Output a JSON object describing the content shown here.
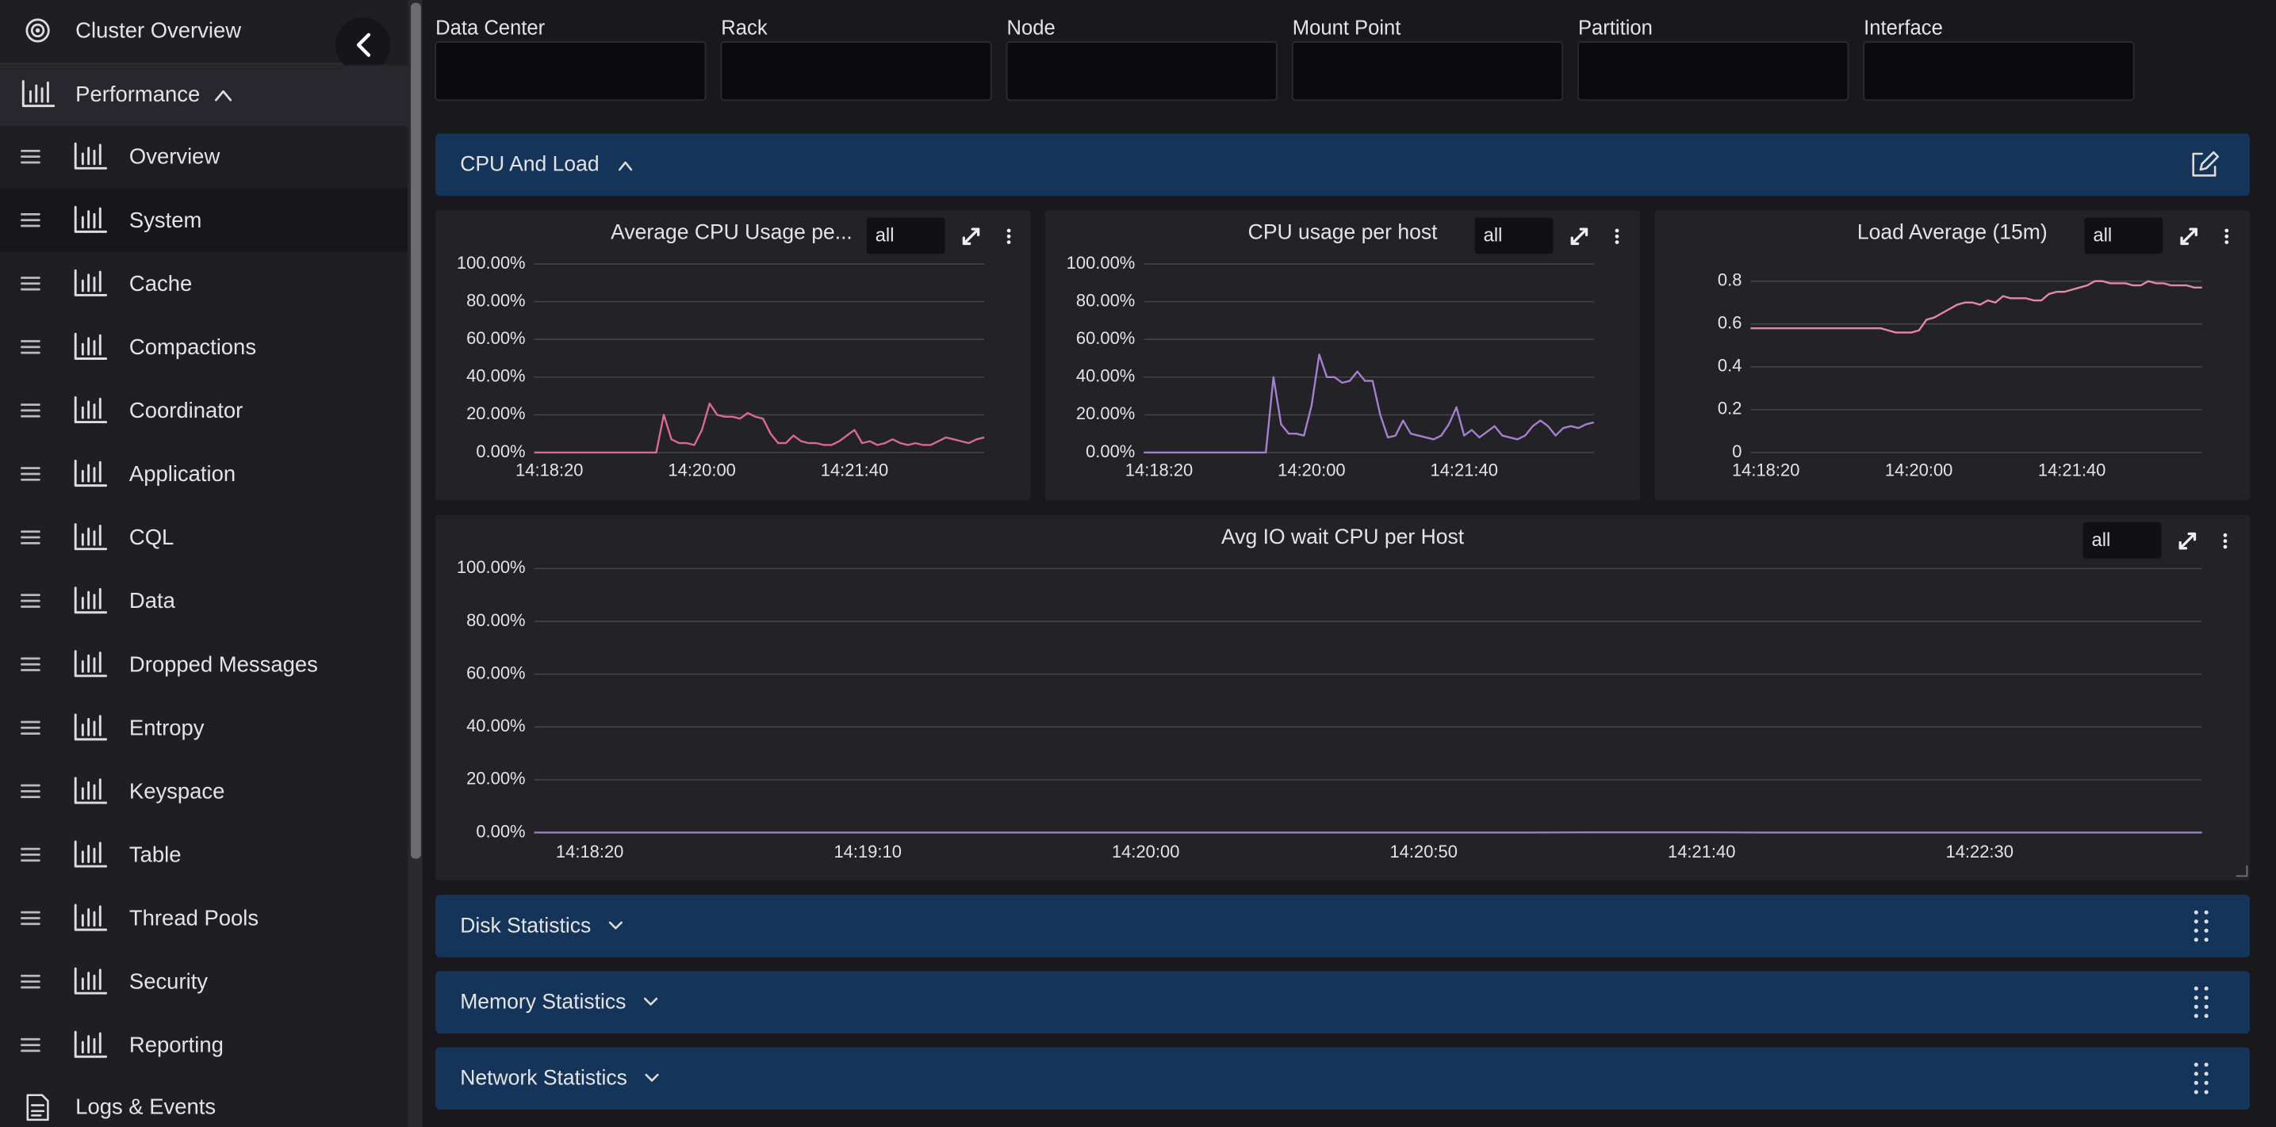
{
  "sidebar": {
    "top": "Cluster Overview",
    "section": "Performance",
    "items": [
      "Overview",
      "System",
      "Cache",
      "Compactions",
      "Coordinator",
      "Application",
      "CQL",
      "Data",
      "Dropped Messages",
      "Entropy",
      "Keyspace",
      "Table",
      "Thread Pools",
      "Security",
      "Reporting"
    ],
    "bottom": "Logs & Events"
  },
  "filters": [
    "Data Center",
    "Rack",
    "Node",
    "Mount Point",
    "Partition",
    "Interface"
  ],
  "groups": [
    "CPU And Load",
    "Disk Statistics",
    "Memory Statistics",
    "Network Statistics"
  ],
  "panels": [
    {
      "type": "line",
      "title": "Average CPU Usage pe...",
      "selector": "all",
      "color": "#d96b8e",
      "categories": [
        null,
        null,
        "14:18:20",
        null,
        null,
        null,
        null,
        null,
        null,
        null,
        null,
        null,
        null,
        null,
        null,
        null,
        null,
        null,
        null,
        null,
        null,
        null,
        "14:20:00",
        null,
        null,
        null,
        null,
        null,
        null,
        null,
        null,
        null,
        null,
        null,
        null,
        null,
        null,
        null,
        null,
        null,
        null,
        null,
        "14:21:40",
        null,
        null,
        null,
        null,
        null,
        null,
        null,
        null,
        null,
        null,
        null,
        null,
        null,
        null,
        null,
        null,
        null
      ],
      "values": [
        0,
        0,
        0,
        0,
        0,
        0,
        0,
        0,
        0,
        0,
        0,
        0,
        0,
        0,
        0,
        0,
        0,
        20,
        7,
        5,
        5,
        4,
        12,
        26,
        20,
        19,
        19,
        18,
        21,
        19,
        18,
        10,
        5,
        5,
        9,
        6,
        5,
        5,
        4,
        4,
        6,
        9,
        12,
        5,
        6,
        4,
        5,
        7,
        5,
        4,
        5,
        4,
        4,
        6,
        8,
        7,
        6,
        5,
        7,
        8
      ],
      "ylim": [
        0,
        100
      ],
      "yticks": [
        {
          "value": 0,
          "label": "0.00%"
        },
        {
          "value": 20,
          "label": "20.00%"
        },
        {
          "value": 40,
          "label": "40.00%"
        },
        {
          "value": 60,
          "label": "60.00%"
        },
        {
          "value": 80,
          "label": "80.00%"
        },
        {
          "value": 100,
          "label": "100.00%"
        }
      ]
    },
    {
      "type": "line",
      "title": "CPU usage per host",
      "selector": "all",
      "color": "#a67fd1",
      "categories": [
        null,
        null,
        "14:18:20",
        null,
        null,
        null,
        null,
        null,
        null,
        null,
        null,
        null,
        null,
        null,
        null,
        null,
        null,
        null,
        null,
        null,
        null,
        null,
        "14:20:00",
        null,
        null,
        null,
        null,
        null,
        null,
        null,
        null,
        null,
        null,
        null,
        null,
        null,
        null,
        null,
        null,
        null,
        null,
        null,
        "14:21:40",
        null,
        null,
        null,
        null,
        null,
        null,
        null,
        null,
        null,
        null,
        null,
        null,
        null,
        null,
        null,
        null,
        null
      ],
      "values": [
        0,
        0,
        0,
        0,
        0,
        0,
        0,
        0,
        0,
        0,
        0,
        0,
        0,
        0,
        0,
        0,
        0,
        40,
        15,
        10,
        10,
        9,
        25,
        52,
        40,
        40,
        37,
        38,
        43,
        38,
        38,
        20,
        8,
        9,
        17,
        10,
        9,
        8,
        7,
        9,
        15,
        24,
        9,
        12,
        8,
        11,
        14,
        9,
        8,
        7,
        9,
        14,
        17,
        14,
        9,
        13,
        14,
        13,
        15,
        16
      ],
      "ylim": [
        0,
        100
      ],
      "yticks": [
        {
          "value": 0,
          "label": "0.00%"
        },
        {
          "value": 20,
          "label": "20.00%"
        },
        {
          "value": 40,
          "label": "40.00%"
        },
        {
          "value": 60,
          "label": "60.00%"
        },
        {
          "value": 80,
          "label": "80.00%"
        },
        {
          "value": 100,
          "label": "100.00%"
        }
      ]
    },
    {
      "type": "line",
      "title": "Load Average (15m)",
      "selector": "all",
      "color": "#e38aa3",
      "categories": [
        null,
        null,
        "14:18:20",
        null,
        null,
        null,
        null,
        null,
        null,
        null,
        null,
        null,
        null,
        null,
        null,
        null,
        null,
        null,
        null,
        null,
        null,
        null,
        "14:20:00",
        null,
        null,
        null,
        null,
        null,
        null,
        null,
        null,
        null,
        null,
        null,
        null,
        null,
        null,
        null,
        null,
        null,
        null,
        null,
        "14:21:40",
        null,
        null,
        null,
        null,
        null,
        null,
        null,
        null,
        null,
        null,
        null,
        null,
        null,
        null,
        null,
        null,
        null
      ],
      "values": [
        0.58,
        0.58,
        0.58,
        0.58,
        0.58,
        0.58,
        0.58,
        0.58,
        0.58,
        0.58,
        0.58,
        0.58,
        0.58,
        0.58,
        0.58,
        0.58,
        0.58,
        0.58,
        0.57,
        0.56,
        0.56,
        0.56,
        0.57,
        0.62,
        0.63,
        0.65,
        0.67,
        0.69,
        0.7,
        0.7,
        0.69,
        0.71,
        0.7,
        0.73,
        0.72,
        0.72,
        0.72,
        0.71,
        0.71,
        0.74,
        0.75,
        0.75,
        0.76,
        0.77,
        0.78,
        0.8,
        0.8,
        0.79,
        0.79,
        0.79,
        0.78,
        0.78,
        0.8,
        0.79,
        0.79,
        0.78,
        0.78,
        0.78,
        0.77,
        0.77
      ],
      "ylim": [
        0,
        0.88
      ],
      "yticks": [
        0,
        0.2,
        0.4,
        0.6,
        0.8
      ]
    },
    {
      "type": "line",
      "title": "Avg IO wait CPU per Host",
      "selector": "all",
      "color": "#9a7cc7",
      "categories": [
        null,
        "14:18:20",
        null,
        null,
        null,
        null,
        "14:19:10",
        null,
        null,
        null,
        null,
        "14:20:00",
        null,
        null,
        null,
        null,
        "14:20:50",
        null,
        null,
        null,
        null,
        "14:21:40",
        null,
        null,
        null,
        null,
        "14:22:30",
        null,
        null,
        null,
        null
      ],
      "values": [
        0,
        0,
        0,
        0,
        0,
        0,
        0,
        0,
        0,
        0,
        0,
        0,
        0,
        0,
        0,
        0,
        0,
        0,
        0,
        0.1,
        0.1,
        0.1,
        0,
        0,
        0,
        0,
        0,
        0,
        0,
        0,
        0
      ],
      "ylim": [
        0,
        100
      ],
      "yticks": [
        {
          "value": 0,
          "label": "0.00%"
        },
        {
          "value": 20,
          "label": "20.00%"
        },
        {
          "value": 40,
          "label": "40.00%"
        },
        {
          "value": 60,
          "label": "60.00%"
        },
        {
          "value": 80,
          "label": "80.00%"
        },
        {
          "value": 100,
          "label": "100.00%"
        }
      ]
    }
  ]
}
